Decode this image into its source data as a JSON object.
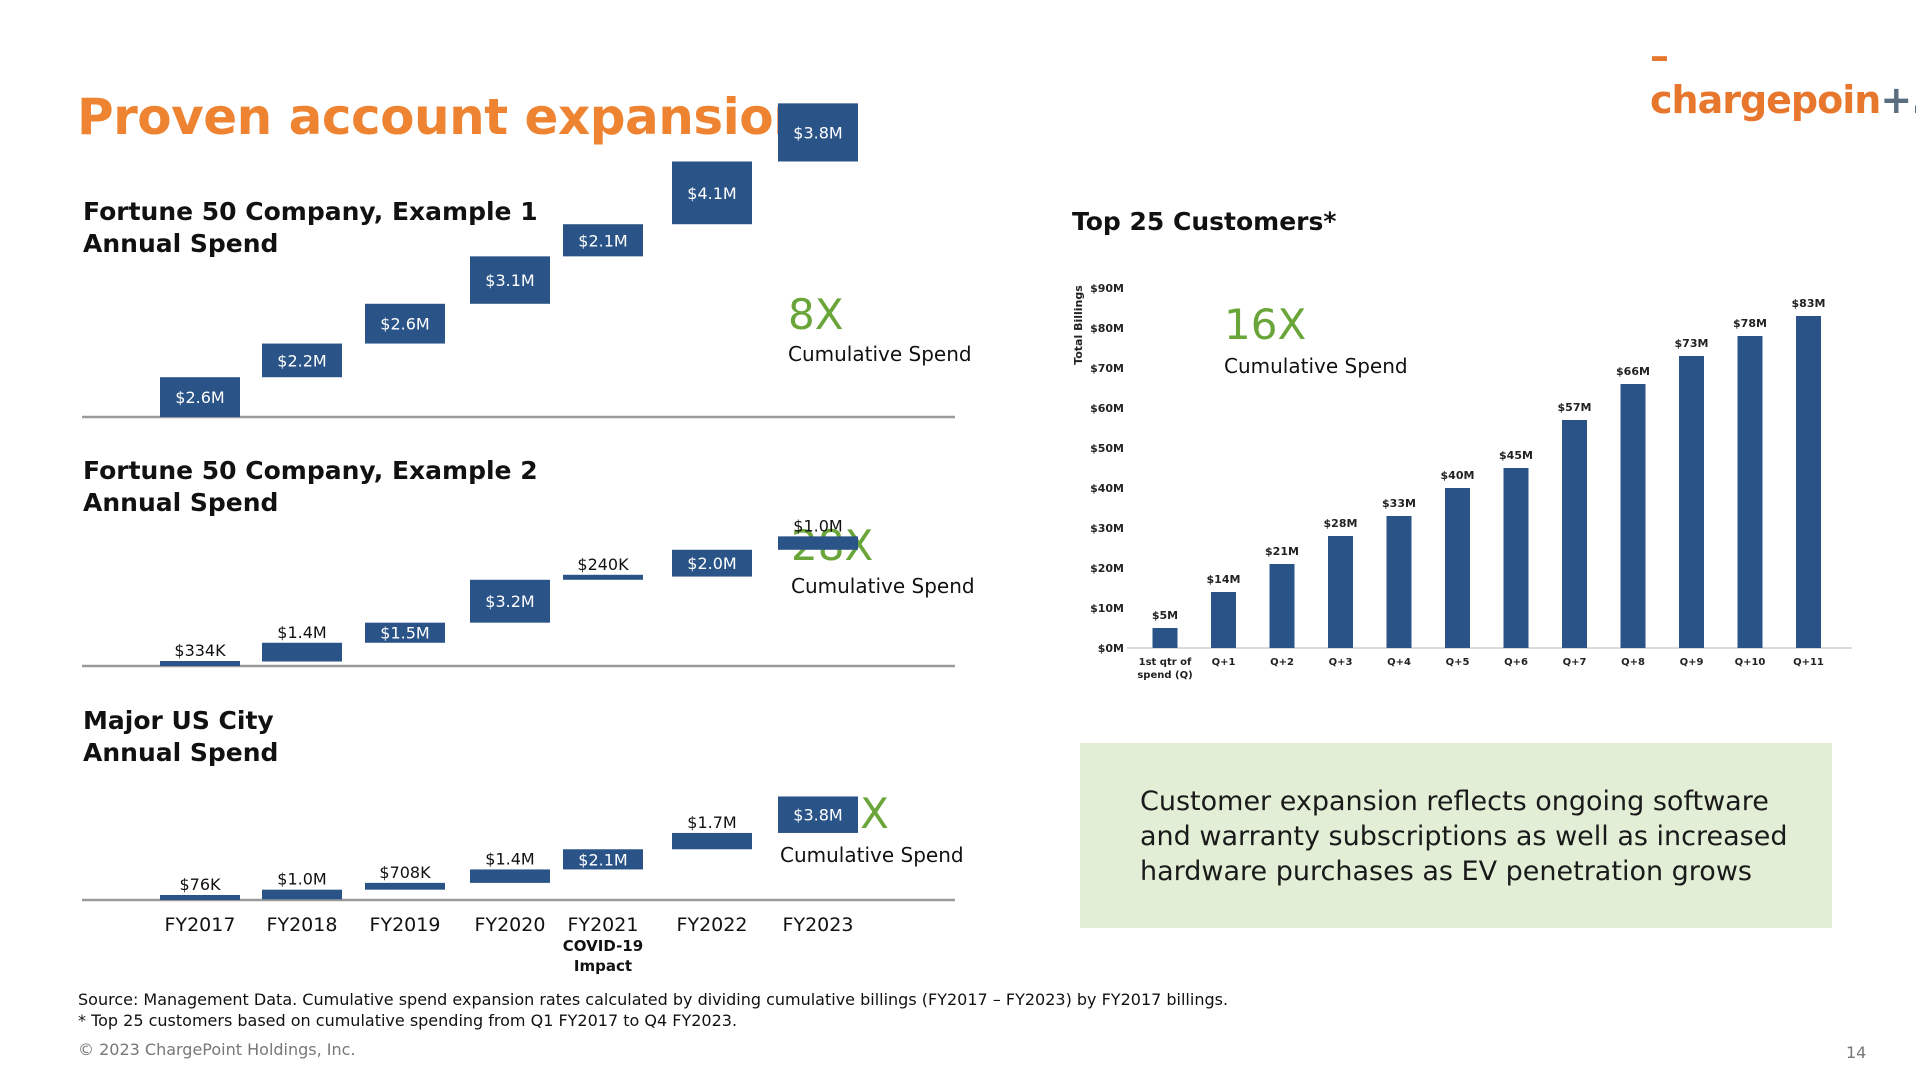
{
  "header": {
    "logo_text": "chargepoin",
    "logo_suffix": "+.",
    "title": "Proven account expansion"
  },
  "colors": {
    "accent_orange": "#ee8432",
    "bar_blue": "#2a5387",
    "multiplier_green": "#6aa53a",
    "callout_bg": "#e2efd6"
  },
  "chart_data": [
    {
      "type": "bar",
      "title": "Fortune 50 Company, Example 1\nAnnual Spend",
      "categories": [
        "FY2017",
        "FY2018",
        "FY2019",
        "FY2020",
        "FY2021",
        "FY2022",
        "FY2023"
      ],
      "values": [
        2.6,
        2.2,
        2.6,
        3.1,
        2.1,
        4.1,
        3.8
      ],
      "value_labels": [
        "$2.6M",
        "$2.2M",
        "$2.6M",
        "$3.1M",
        "$2.1M",
        "$4.1M",
        "$3.8M"
      ],
      "unit": "M",
      "multiplier": "8X",
      "multiplier_caption": "Cumulative Spend",
      "grid": false
    },
    {
      "type": "bar",
      "title": "Fortune 50 Company, Example 2\nAnnual Spend",
      "categories": [
        "FY2017",
        "FY2018",
        "FY2019",
        "FY2020",
        "FY2021",
        "FY2022",
        "FY2023"
      ],
      "values": [
        0.334,
        1.4,
        1.5,
        3.2,
        0.24,
        2.0,
        1.0
      ],
      "value_labels": [
        "$334K",
        "$1.4M",
        "$1.5M",
        "$3.2M",
        "$240K",
        "$2.0M",
        "$1.0M"
      ],
      "unit": "M",
      "multiplier": "28X",
      "multiplier_caption": "Cumulative Spend",
      "grid": false
    },
    {
      "type": "bar",
      "title": "Major US City\nAnnual Spend",
      "categories": [
        "FY2017",
        "FY2018",
        "FY2019",
        "FY2020",
        "FY2021",
        "FY2022",
        "FY2023"
      ],
      "category_notes": [
        "",
        "",
        "",
        "",
        "COVID-19\nImpact",
        "",
        ""
      ],
      "values": [
        0.076,
        1.0,
        0.708,
        1.4,
        2.1,
        1.7,
        3.8
      ],
      "value_labels": [
        "$76K",
        "$1.0M",
        "$708K",
        "$1.4M",
        "$2.1M",
        "$1.7M",
        "$3.8M"
      ],
      "unit": "M",
      "multiplier": "142X",
      "multiplier_caption": "Cumulative Spend",
      "grid": false
    },
    {
      "type": "bar",
      "title": "Top 25 Customers*",
      "categories": [
        "1st qtr of\nspend (Q)",
        "Q+1",
        "Q+2",
        "Q+3",
        "Q+4",
        "Q+5",
        "Q+6",
        "Q+7",
        "Q+8",
        "Q+9",
        "Q+10",
        "Q+11"
      ],
      "values": [
        5,
        14,
        21,
        28,
        33,
        40,
        45,
        57,
        66,
        73,
        78,
        83
      ],
      "value_labels": [
        "$5M",
        "$14M",
        "$21M",
        "$28M",
        "$33M",
        "$40M",
        "$45M",
        "$57M",
        "$66M",
        "$73M",
        "$78M",
        "$83M"
      ],
      "ylabel": "Total Billings",
      "ylim": [
        0,
        90
      ],
      "yticks": [
        0,
        10,
        20,
        30,
        40,
        50,
        60,
        70,
        80,
        90
      ],
      "ytick_labels": [
        "$0M",
        "$10M",
        "$20M",
        "$30M",
        "$40M",
        "$50M",
        "$60M",
        "$70M",
        "$80M",
        "$90M"
      ],
      "multiplier": "16X",
      "multiplier_caption": "Cumulative Spend",
      "grid": false
    }
  ],
  "callout": {
    "text": "Customer expansion reflects ongoing software and warranty subscriptions as well as increased hardware purchases as EV penetration grows"
  },
  "footer": {
    "source_line1": "Source: Management Data. Cumulative spend expansion rates calculated by dividing cumulative billings (FY2017 – FY2023) by FY2017 billings.",
    "source_line2": "* Top 25 customers based on cumulative spending from Q1 FY2017 to Q4 FY2023.",
    "copyright": "© 2023 ChargePoint Holdings, Inc.",
    "page_number": "14"
  }
}
